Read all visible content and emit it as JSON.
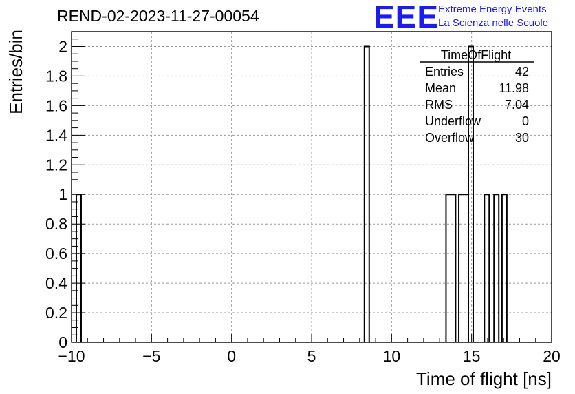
{
  "title": "REND-02-2023-11-27-00054",
  "logo": {
    "mark": "EEE",
    "line1": "Extreme Energy Events",
    "line2": "La Scienza nelle Scuole",
    "color": "#1c1cf0"
  },
  "stats": {
    "name": "TimeOfFlight",
    "rows": [
      {
        "label": "Entries",
        "value": "42"
      },
      {
        "label": "Mean",
        "value": "11.98"
      },
      {
        "label": "RMS",
        "value": "7.04"
      },
      {
        "label": "Underflow",
        "value": "0"
      },
      {
        "label": "Overflow",
        "value": "30"
      }
    ]
  },
  "chart_data": {
    "type": "histogram",
    "xlabel": "Time of flight [ns]",
    "ylabel": "Entries/bin",
    "xlim": [
      -10,
      20
    ],
    "ylim": [
      0,
      2.1
    ],
    "grid": true,
    "bin_width": 0.3,
    "xticks": [
      "−10",
      "−5",
      "0",
      "5",
      "10",
      "15",
      "20"
    ],
    "xtick_values": [
      -10,
      -5,
      0,
      5,
      10,
      15,
      20
    ],
    "yticks": [
      "0",
      "0.2",
      "0.4",
      "0.6",
      "0.8",
      "1",
      "1.2",
      "1.4",
      "1.6",
      "1.8",
      "2"
    ],
    "ytick_values": [
      0,
      0.2,
      0.4,
      0.6,
      0.8,
      1,
      1.2,
      1.4,
      1.6,
      1.8,
      2
    ],
    "bins": [
      {
        "x0": -9.7,
        "x1": -9.4,
        "count": 1
      },
      {
        "x0": 8.3,
        "x1": 8.6,
        "count": 2
      },
      {
        "x0": 13.4,
        "x1": 14.0,
        "count": 1
      },
      {
        "x0": 14.2,
        "x1": 14.8,
        "count": 1
      },
      {
        "x0": 14.8,
        "x1": 15.1,
        "count": 2
      },
      {
        "x0": 15.8,
        "x1": 16.1,
        "count": 1
      },
      {
        "x0": 16.4,
        "x1": 16.7,
        "count": 1
      },
      {
        "x0": 16.9,
        "x1": 17.2,
        "count": 1
      }
    ]
  }
}
